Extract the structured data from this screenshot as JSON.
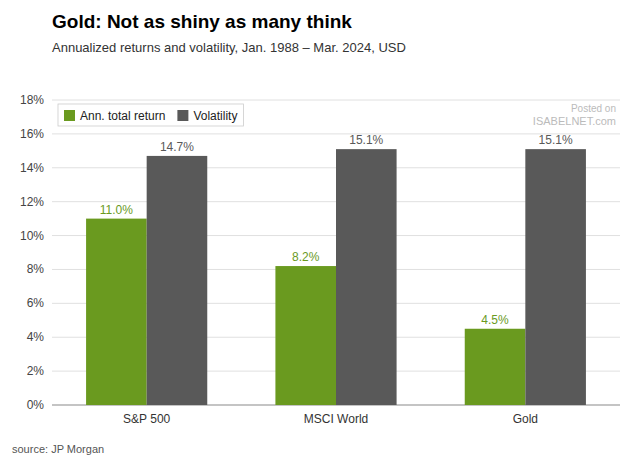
{
  "chart_data": {
    "type": "bar",
    "title": "Gold: Not as shiny as many think",
    "subtitle": "Annualized returns and volatility, Jan. 1988 – Mar. 2024, USD",
    "categories": [
      "S&P 500",
      "MSCI World",
      "Gold"
    ],
    "series": [
      {
        "name": "Ann. total return",
        "color": "#6a9a1f",
        "values": [
          11.0,
          8.2,
          4.5
        ],
        "value_labels": [
          "11.0%",
          "8.2%",
          "4.5%"
        ]
      },
      {
        "name": "Volatility",
        "color": "#595959",
        "values": [
          14.7,
          15.1,
          15.1
        ],
        "value_labels": [
          "14.7%",
          "15.1%",
          "15.1%"
        ]
      }
    ],
    "ylim": [
      0,
      18
    ],
    "yticks": [
      {
        "value": 0,
        "label": "0%"
      },
      {
        "value": 2,
        "label": "2%"
      },
      {
        "value": 4,
        "label": "4%"
      },
      {
        "value": 6,
        "label": "6%"
      },
      {
        "value": 8,
        "label": "8%"
      },
      {
        "value": 10,
        "label": "10%"
      },
      {
        "value": 12,
        "label": "12%"
      },
      {
        "value": 14,
        "label": "14%"
      },
      {
        "value": 16,
        "label": "16%"
      },
      {
        "value": 18,
        "label": "18%"
      }
    ],
    "grid": true,
    "legend": "top-left",
    "data_labels": true,
    "annotations": [
      "source: JP Morgan",
      "Posted on",
      "ISABELNET.com"
    ]
  }
}
